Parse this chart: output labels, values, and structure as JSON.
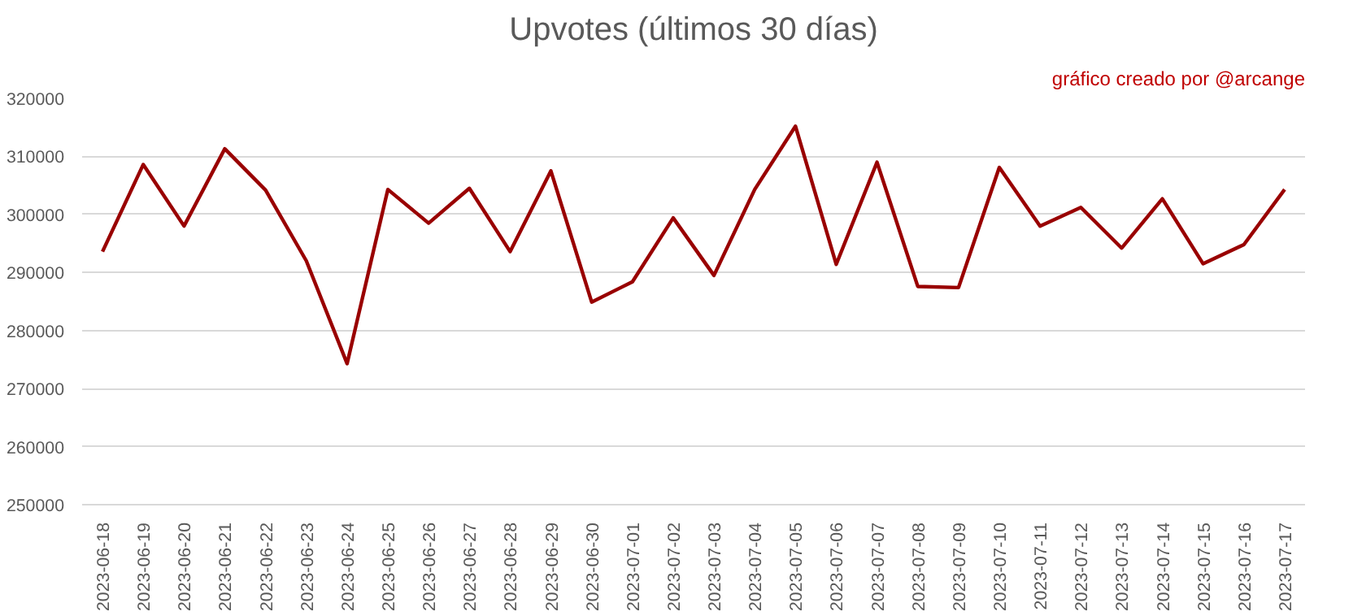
{
  "chart_data": {
    "type": "line",
    "title": "Upvotes (últimos 30 días)",
    "annotations": [
      "gráfico creado por @arcange"
    ],
    "categories": [
      "2023-06-18",
      "2023-06-19",
      "2023-06-20",
      "2023-06-21",
      "2023-06-22",
      "2023-06-23",
      "2023-06-24",
      "2023-06-25",
      "2023-06-26",
      "2023-06-27",
      "2023-06-28",
      "2023-06-29",
      "2023-06-30",
      "2023-07-01",
      "2023-07-02",
      "2023-07-03",
      "2023-07-04",
      "2023-07-05",
      "2023-07-06",
      "2023-07-07",
      "2023-07-08",
      "2023-07-09",
      "2023-07-10",
      "2023-07-11",
      "2023-07-12",
      "2023-07-13",
      "2023-07-14",
      "2023-07-15",
      "2023-07-16",
      "2023-07-17"
    ],
    "series": [
      {
        "color": "#990000",
        "values": [
          293600,
          308600,
          298000,
          311300,
          304200,
          292000,
          274300,
          304300,
          298500,
          304500,
          293600,
          307500,
          284900,
          288400,
          299400,
          289500,
          304300,
          315200,
          291400,
          309000,
          287600,
          287400,
          308100,
          298000,
          301200,
          294200,
          302700,
          291500,
          294800,
          304300
        ]
      }
    ],
    "ylim": [
      250000,
      320000
    ],
    "yticks": [
      250000,
      260000,
      270000,
      280000,
      290000,
      300000,
      310000,
      320000
    ],
    "grid": "y"
  }
}
